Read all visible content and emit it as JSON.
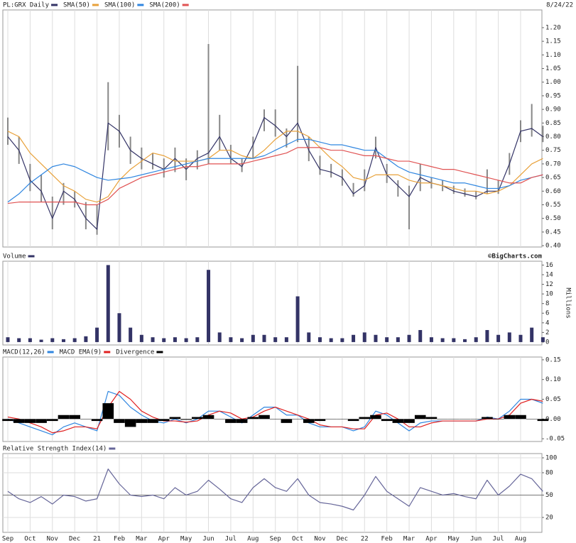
{
  "chart_data": [
    {
      "type": "line",
      "date": "8/24/22",
      "grid": "x",
      "ylim": [
        0.395,
        1.265
      ],
      "yticks": [
        {
          "value": 0.4,
          "label": "0.40"
        },
        {
          "value": 0.45,
          "label": "0.45"
        },
        {
          "value": 0.5,
          "label": "0.50"
        },
        {
          "value": 0.55,
          "label": "0.55"
        },
        {
          "value": 0.6,
          "label": "0.60"
        },
        {
          "value": 0.65,
          "label": "0.65"
        },
        {
          "value": 0.7,
          "label": "0.70"
        },
        {
          "value": 0.75,
          "label": "0.75"
        },
        {
          "value": 0.8,
          "label": "0.80"
        },
        {
          "value": 0.85,
          "label": "0.85"
        },
        {
          "value": 0.9,
          "label": "0.90"
        },
        {
          "value": 0.95,
          "label": "0.95"
        },
        {
          "value": 1.0,
          "label": "1.00"
        },
        {
          "value": 1.05,
          "label": "1.05"
        },
        {
          "value": 1.1,
          "label": "1.10"
        },
        {
          "value": 1.15,
          "label": "1.15"
        },
        {
          "value": 1.2,
          "label": "1.20"
        }
      ],
      "series": [
        {
          "name": "PL:GRX Daily",
          "color": "#333366",
          "values": [
            0.8,
            0.75,
            0.64,
            0.6,
            0.5,
            0.6,
            0.57,
            0.5,
            0.46,
            0.85,
            0.82,
            0.75,
            0.72,
            0.7,
            0.68,
            0.72,
            0.68,
            0.72,
            0.74,
            0.8,
            0.72,
            0.69,
            0.77,
            0.87,
            0.84,
            0.8,
            0.85,
            0.75,
            0.68,
            0.67,
            0.65,
            0.59,
            0.62,
            0.76,
            0.66,
            0.62,
            0.58,
            0.65,
            0.63,
            0.62,
            0.6,
            0.59,
            0.58,
            0.6,
            0.6,
            0.7,
            0.82,
            0.83,
            0.8
          ],
          "high": [
            0.87,
            0.8,
            0.7,
            0.66,
            0.58,
            0.63,
            0.6,
            0.56,
            0.55,
            1.0,
            0.88,
            0.8,
            0.76,
            0.74,
            0.72,
            0.76,
            0.72,
            0.75,
            1.14,
            0.88,
            0.77,
            0.72,
            0.8,
            0.9,
            0.9,
            0.83,
            1.06,
            0.8,
            0.73,
            0.7,
            0.68,
            0.63,
            0.68,
            0.8,
            0.7,
            0.64,
            0.62,
            0.7,
            0.65,
            0.64,
            0.62,
            0.61,
            0.6,
            0.68,
            0.64,
            0.74,
            0.86,
            0.92,
            0.84
          ],
          "low": [
            0.77,
            0.7,
            0.6,
            0.56,
            0.46,
            0.55,
            0.54,
            0.46,
            0.44,
            0.75,
            0.76,
            0.7,
            0.68,
            0.68,
            0.65,
            0.67,
            0.64,
            0.68,
            0.7,
            0.75,
            0.7,
            0.67,
            0.72,
            0.82,
            0.8,
            0.76,
            0.78,
            0.71,
            0.66,
            0.65,
            0.62,
            0.58,
            0.6,
            0.72,
            0.63,
            0.58,
            0.46,
            0.6,
            0.61,
            0.6,
            0.59,
            0.58,
            0.57,
            0.59,
            0.59,
            0.66,
            0.78,
            0.8,
            0.78
          ]
        },
        {
          "name": "SMA(50)",
          "color": "#e8a13a",
          "values": [
            0.82,
            0.8,
            0.74,
            0.7,
            0.66,
            0.62,
            0.6,
            0.57,
            0.56,
            0.58,
            0.64,
            0.68,
            0.71,
            0.74,
            0.73,
            0.71,
            0.71,
            0.71,
            0.72,
            0.75,
            0.75,
            0.73,
            0.72,
            0.75,
            0.79,
            0.82,
            0.82,
            0.8,
            0.76,
            0.72,
            0.69,
            0.65,
            0.64,
            0.66,
            0.66,
            0.66,
            0.64,
            0.63,
            0.63,
            0.62,
            0.61,
            0.6,
            0.6,
            0.59,
            0.6,
            0.62,
            0.66,
            0.7,
            0.72
          ]
        },
        {
          "name": "SMA(100)",
          "color": "#2f86e0",
          "values": [
            0.56,
            0.59,
            0.63,
            0.66,
            0.69,
            0.7,
            0.69,
            0.67,
            0.65,
            0.64,
            0.645,
            0.65,
            0.66,
            0.67,
            0.68,
            0.69,
            0.7,
            0.71,
            0.72,
            0.72,
            0.72,
            0.72,
            0.72,
            0.73,
            0.75,
            0.77,
            0.79,
            0.79,
            0.78,
            0.77,
            0.77,
            0.76,
            0.75,
            0.75,
            0.72,
            0.69,
            0.67,
            0.66,
            0.65,
            0.64,
            0.63,
            0.63,
            0.62,
            0.61,
            0.61,
            0.62,
            0.64,
            0.65,
            0.66
          ]
        },
        {
          "name": "SMA(200)",
          "color": "#e05252",
          "values": [
            0.555,
            0.56,
            0.56,
            0.56,
            0.56,
            0.56,
            0.56,
            0.55,
            0.55,
            0.57,
            0.61,
            0.63,
            0.65,
            0.66,
            0.67,
            0.68,
            0.69,
            0.69,
            0.7,
            0.7,
            0.7,
            0.7,
            0.71,
            0.72,
            0.73,
            0.74,
            0.76,
            0.76,
            0.76,
            0.75,
            0.75,
            0.74,
            0.73,
            0.73,
            0.72,
            0.71,
            0.71,
            0.7,
            0.69,
            0.68,
            0.68,
            0.67,
            0.66,
            0.65,
            0.64,
            0.63,
            0.63,
            0.65,
            0.66
          ]
        }
      ]
    },
    {
      "type": "bar",
      "credit": "©BigCharts.com",
      "ylabel": "Millions",
      "grid": "x",
      "ylim": [
        -0.6,
        16.8
      ],
      "yticks": [
        0,
        2,
        4,
        6,
        8,
        10,
        12,
        14,
        16
      ],
      "series": [
        {
          "name": "Volume",
          "color": "#333366",
          "values": [
            1,
            0.8,
            0.8,
            0.5,
            0.8,
            0.6,
            0.8,
            1.2,
            3,
            16,
            6,
            3,
            1.5,
            1,
            0.8,
            1,
            0.8,
            1,
            15,
            2,
            1,
            0.8,
            1.5,
            1.5,
            1,
            1,
            9.5,
            2,
            1,
            0.8,
            0.8,
            1.5,
            2,
            1.5,
            1,
            1,
            1.5,
            2.5,
            1,
            0.8,
            0.8,
            0.6,
            1,
            2.5,
            1.5,
            2,
            1.5,
            3,
            1
          ]
        }
      ]
    },
    {
      "type": "line",
      "grid": "x",
      "ylim": [
        -0.057,
        0.157
      ],
      "yticks": [
        {
          "value": -0.05,
          "label": "-0.05"
        },
        {
          "value": 0,
          "label": "0.00"
        },
        {
          "value": 0.05,
          "label": "0.05"
        },
        {
          "value": 0.1,
          "label": "0.10"
        },
        {
          "value": 0.15,
          "label": "0.15"
        }
      ],
      "series": [
        {
          "name": "MACD(12,26)",
          "color": "#2f86e0",
          "values": [
            0,
            -0.01,
            -0.02,
            -0.03,
            -0.04,
            -0.02,
            -0.01,
            -0.02,
            -0.03,
            0.07,
            0.06,
            0.03,
            0.01,
            -0.005,
            -0.01,
            0,
            -0.01,
            0,
            0.02,
            0.02,
            0.005,
            -0.01,
            0.01,
            0.03,
            0.03,
            0.01,
            0.01,
            -0.01,
            -0.02,
            -0.02,
            -0.02,
            -0.03,
            -0.02,
            0.02,
            0.01,
            -0.01,
            -0.03,
            -0.01,
            -0.005,
            -0.005,
            -0.005,
            -0.005,
            -0.005,
            0.005,
            0,
            0.02,
            0.05,
            0.05,
            0.04
          ]
        },
        {
          "name": "MACD EMA(9)",
          "color": "#e02020",
          "values": [
            0.005,
            0,
            -0.01,
            -0.02,
            -0.035,
            -0.03,
            -0.02,
            -0.02,
            -0.025,
            0.03,
            0.07,
            0.05,
            0.02,
            0.005,
            -0.005,
            -0.005,
            -0.008,
            -0.005,
            0.01,
            0.02,
            0.015,
            0,
            0.005,
            0.02,
            0.03,
            0.02,
            0.01,
            0,
            -0.015,
            -0.02,
            -0.02,
            -0.025,
            -0.025,
            0.01,
            0.015,
            0,
            -0.02,
            -0.02,
            -0.01,
            -0.005,
            -0.005,
            -0.005,
            -0.005,
            0,
            0,
            0.01,
            0.04,
            0.05,
            0.045
          ]
        },
        {
          "name": "Divergence",
          "color": "#000000",
          "mark": "histogram",
          "values": [
            -0.005,
            -0.01,
            -0.01,
            -0.01,
            -0.005,
            0.01,
            0.01,
            0,
            -0.005,
            0.04,
            -0.01,
            -0.02,
            -0.01,
            -0.01,
            -0.005,
            0.005,
            -0.002,
            0.005,
            0.01,
            0,
            -0.01,
            -0.01,
            0.005,
            0.01,
            0,
            -0.01,
            0,
            -0.01,
            -0.005,
            0,
            0,
            -0.005,
            0.005,
            0.01,
            -0.005,
            -0.01,
            -0.01,
            0.01,
            0.005,
            0,
            0,
            0,
            0,
            0.005,
            0,
            0.01,
            0.01,
            0,
            -0.005
          ]
        }
      ]
    },
    {
      "type": "line",
      "grid": "both",
      "ylim": [
        0,
        105.7
      ],
      "yticks": [
        20,
        50,
        80,
        100
      ],
      "categories": [
        "Sep",
        null,
        "Oct",
        null,
        "Nov",
        null,
        "Dec",
        null,
        "21",
        null,
        "Feb",
        null,
        "Mar",
        null,
        "Apr",
        null,
        "May",
        null,
        "Jun",
        null,
        "Jul",
        null,
        "Aug",
        null,
        "Sep",
        null,
        "Oct",
        null,
        "Nov",
        null,
        "Dec",
        null,
        "22",
        null,
        "Feb",
        null,
        "Mar",
        null,
        "Apr",
        null,
        "May",
        null,
        "Jun",
        null,
        "Jul",
        null,
        "Aug",
        null,
        null
      ],
      "series": [
        {
          "name": "Relative Strength Index(14)",
          "color": "#666699",
          "values": [
            55,
            45,
            40,
            48,
            38,
            50,
            48,
            42,
            45,
            85,
            65,
            50,
            48,
            50,
            45,
            60,
            50,
            55,
            70,
            58,
            45,
            40,
            60,
            72,
            60,
            55,
            72,
            50,
            40,
            38,
            35,
            30,
            50,
            75,
            55,
            45,
            35,
            60,
            55,
            50,
            52,
            48,
            45,
            70,
            50,
            62,
            78,
            72,
            55
          ]
        }
      ]
    }
  ]
}
